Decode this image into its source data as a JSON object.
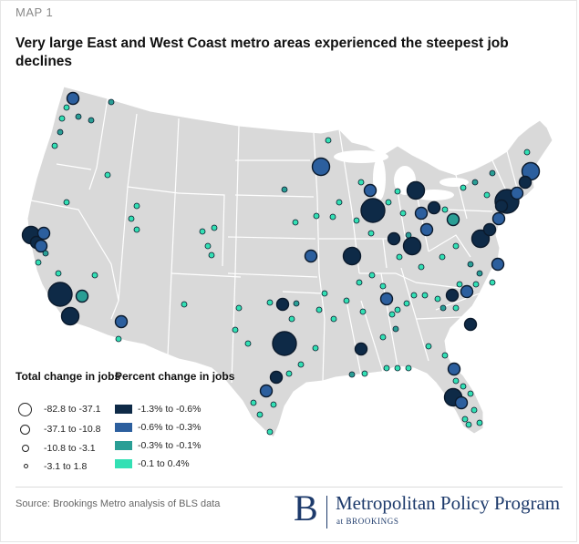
{
  "header": {
    "map_label": "MAP 1",
    "title": "Very large East and West Coast metro areas experienced the steepest job declines"
  },
  "legend": {
    "size_title": "Total change in jobs",
    "size_items": [
      {
        "label": "-82.8  to -37.1"
      },
      {
        "label": "-37.1 to  -10.8"
      },
      {
        "label": "-10.8 to -3.1"
      },
      {
        "label": "-3.1 to 1.8"
      }
    ],
    "color_title": "Percent change in jobs",
    "color_items": [
      {
        "label": "-1.3% to -0.6%",
        "color": "#0e2a47"
      },
      {
        "label": "-0.6% to -0.3%",
        "color": "#2c5f9e"
      },
      {
        "label": "-0.3% to -0.1%",
        "color": "#2a9e95"
      },
      {
        "label": "-0.1 to 0.4%",
        "color": "#33e0b4"
      }
    ]
  },
  "source": "Source: Brookings Metro analysis of BLS data",
  "logo": {
    "letter": "B",
    "program": "Metropolitan Policy Program",
    "org": "at BROOKINGS"
  },
  "colors": {
    "land": "#d9d9d9",
    "border": "#ffffff"
  }
}
